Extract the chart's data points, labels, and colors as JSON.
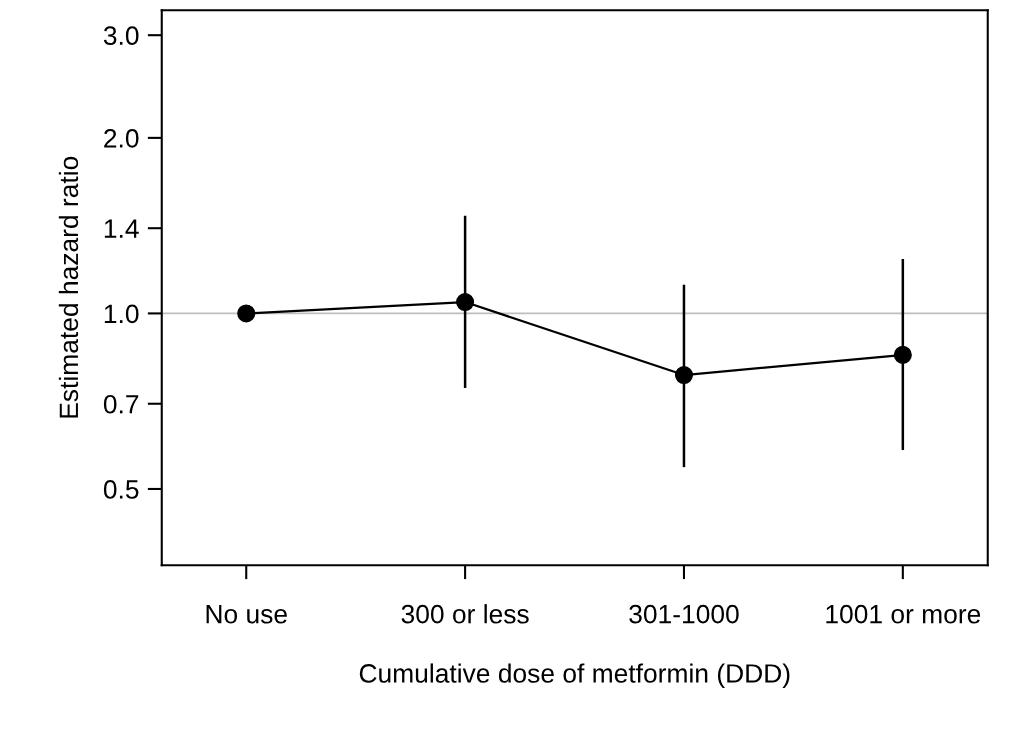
{
  "chart_data": {
    "type": "line",
    "xlabel": "Cumulative dose of metformin (DDD)",
    "ylabel": "Estimated hazard ratio",
    "categories": [
      "No use",
      "300 or less",
      "301-1000",
      "1001 or more"
    ],
    "series": [
      {
        "color": "#000000",
        "values": [
          1.0,
          1.046,
          0.784,
          0.849
        ],
        "errors": [
          null,
          [
            0.745,
            1.47
          ],
          [
            0.545,
            1.12
          ],
          [
            0.583,
            1.24
          ]
        ]
      }
    ],
    "log": "y",
    "ylim": [
      0.37,
      3.31
    ],
    "yticks": [
      0.5,
      0.7,
      {
        "value": 1,
        "label": "1.0"
      },
      1.4,
      {
        "value": 2,
        "label": "2.0"
      },
      {
        "value": 3,
        "label": "3.0"
      }
    ],
    "ref_lines": [
      {
        "axis": "y",
        "value": 1.0,
        "color": "#bebebe"
      }
    ],
    "marker": "circle",
    "line_style": "solid",
    "grid": false,
    "legend": false
  }
}
